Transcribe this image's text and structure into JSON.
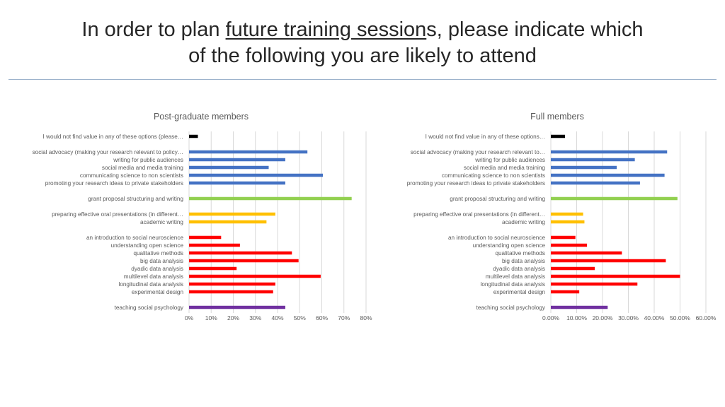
{
  "slide": {
    "title_line1_before": "In order to plan ",
    "title_line1_emph": "future training session",
    "title_line1_after": "s, please indicate which",
    "title_line2": "of the following you are likely to attend"
  },
  "colors": {
    "black": "#000000",
    "blue": "#4472c4",
    "green": "#92d050",
    "yellow": "#ffc000",
    "red": "#ff0000",
    "purple": "#7030a0",
    "gridline": "#d9d9d9",
    "text": "#595959"
  },
  "chart_data": [
    {
      "type": "bar",
      "orientation": "horizontal",
      "title": "Post-graduate members",
      "xlim": [
        0,
        0.8
      ],
      "ticks": [
        0,
        0.1,
        0.2,
        0.3,
        0.4,
        0.5,
        0.6,
        0.7,
        0.8
      ],
      "tick_labels": [
        "0%",
        "10%",
        "20%",
        "30%",
        "40%",
        "50%",
        "60%",
        "70%",
        "80%"
      ],
      "grid": true,
      "categories": [
        "I would not find value in any of these options (please…",
        "social advocacy (making your research relevant to policy…",
        "writing for public audiences",
        "social media and media training",
        "communicating science to non scientists",
        "promoting your research ideas to private stakeholders",
        "grant proposal structuring and writing",
        "preparing effective oral presentations (in different…",
        "academic writing",
        "an introduction to social neuroscience",
        "understanding open science",
        "qualitative methods",
        "big data analysis",
        "dyadic data analysis",
        "multilevel data analysis",
        "longitudinal data analysis",
        "experimental design",
        "teaching social psychology"
      ],
      "values": [
        0.04,
        0.535,
        0.435,
        0.36,
        0.605,
        0.435,
        0.735,
        0.39,
        0.35,
        0.145,
        0.23,
        0.465,
        0.495,
        0.215,
        0.595,
        0.39,
        0.38,
        0.435
      ],
      "bar_colors": [
        "black",
        "blue",
        "blue",
        "blue",
        "blue",
        "blue",
        "green",
        "yellow",
        "yellow",
        "red",
        "red",
        "red",
        "red",
        "red",
        "red",
        "red",
        "red",
        "purple"
      ],
      "groups": [
        1,
        5,
        1,
        2,
        8,
        1
      ]
    },
    {
      "type": "bar",
      "orientation": "horizontal",
      "title": "Full members",
      "xlim": [
        0,
        0.6
      ],
      "ticks": [
        0,
        0.1,
        0.2,
        0.3,
        0.4,
        0.5,
        0.6
      ],
      "tick_labels": [
        "0.00%",
        "10.00%",
        "20.00%",
        "30.00%",
        "40.00%",
        "50.00%",
        "60.00%"
      ],
      "grid": true,
      "categories": [
        "I would not find value in any of these options…",
        "social advocacy (making your research relevant to…",
        "writing for public audiences",
        "social media and media training",
        "communicating science to non scientists",
        "promoting your research ideas to private stakeholders",
        "grant proposal structuring and writing",
        "preparing effective oral presentations (in different…",
        "academic writing",
        "an introduction to social neuroscience",
        "understanding open science",
        "qualitative methods",
        "big data analysis",
        "dyadic data analysis",
        "multilevel data analysis",
        "longitudinal data analysis",
        "experimental design",
        "teaching social psychology"
      ],
      "values": [
        0.055,
        0.45,
        0.325,
        0.255,
        0.44,
        0.345,
        0.49,
        0.125,
        0.13,
        0.095,
        0.14,
        0.275,
        0.445,
        0.17,
        0.5,
        0.335,
        0.11,
        0.22
      ],
      "bar_colors": [
        "black",
        "blue",
        "blue",
        "blue",
        "blue",
        "blue",
        "green",
        "yellow",
        "yellow",
        "red",
        "red",
        "red",
        "red",
        "red",
        "red",
        "red",
        "red",
        "purple"
      ],
      "groups": [
        1,
        5,
        1,
        2,
        8,
        1
      ]
    }
  ]
}
